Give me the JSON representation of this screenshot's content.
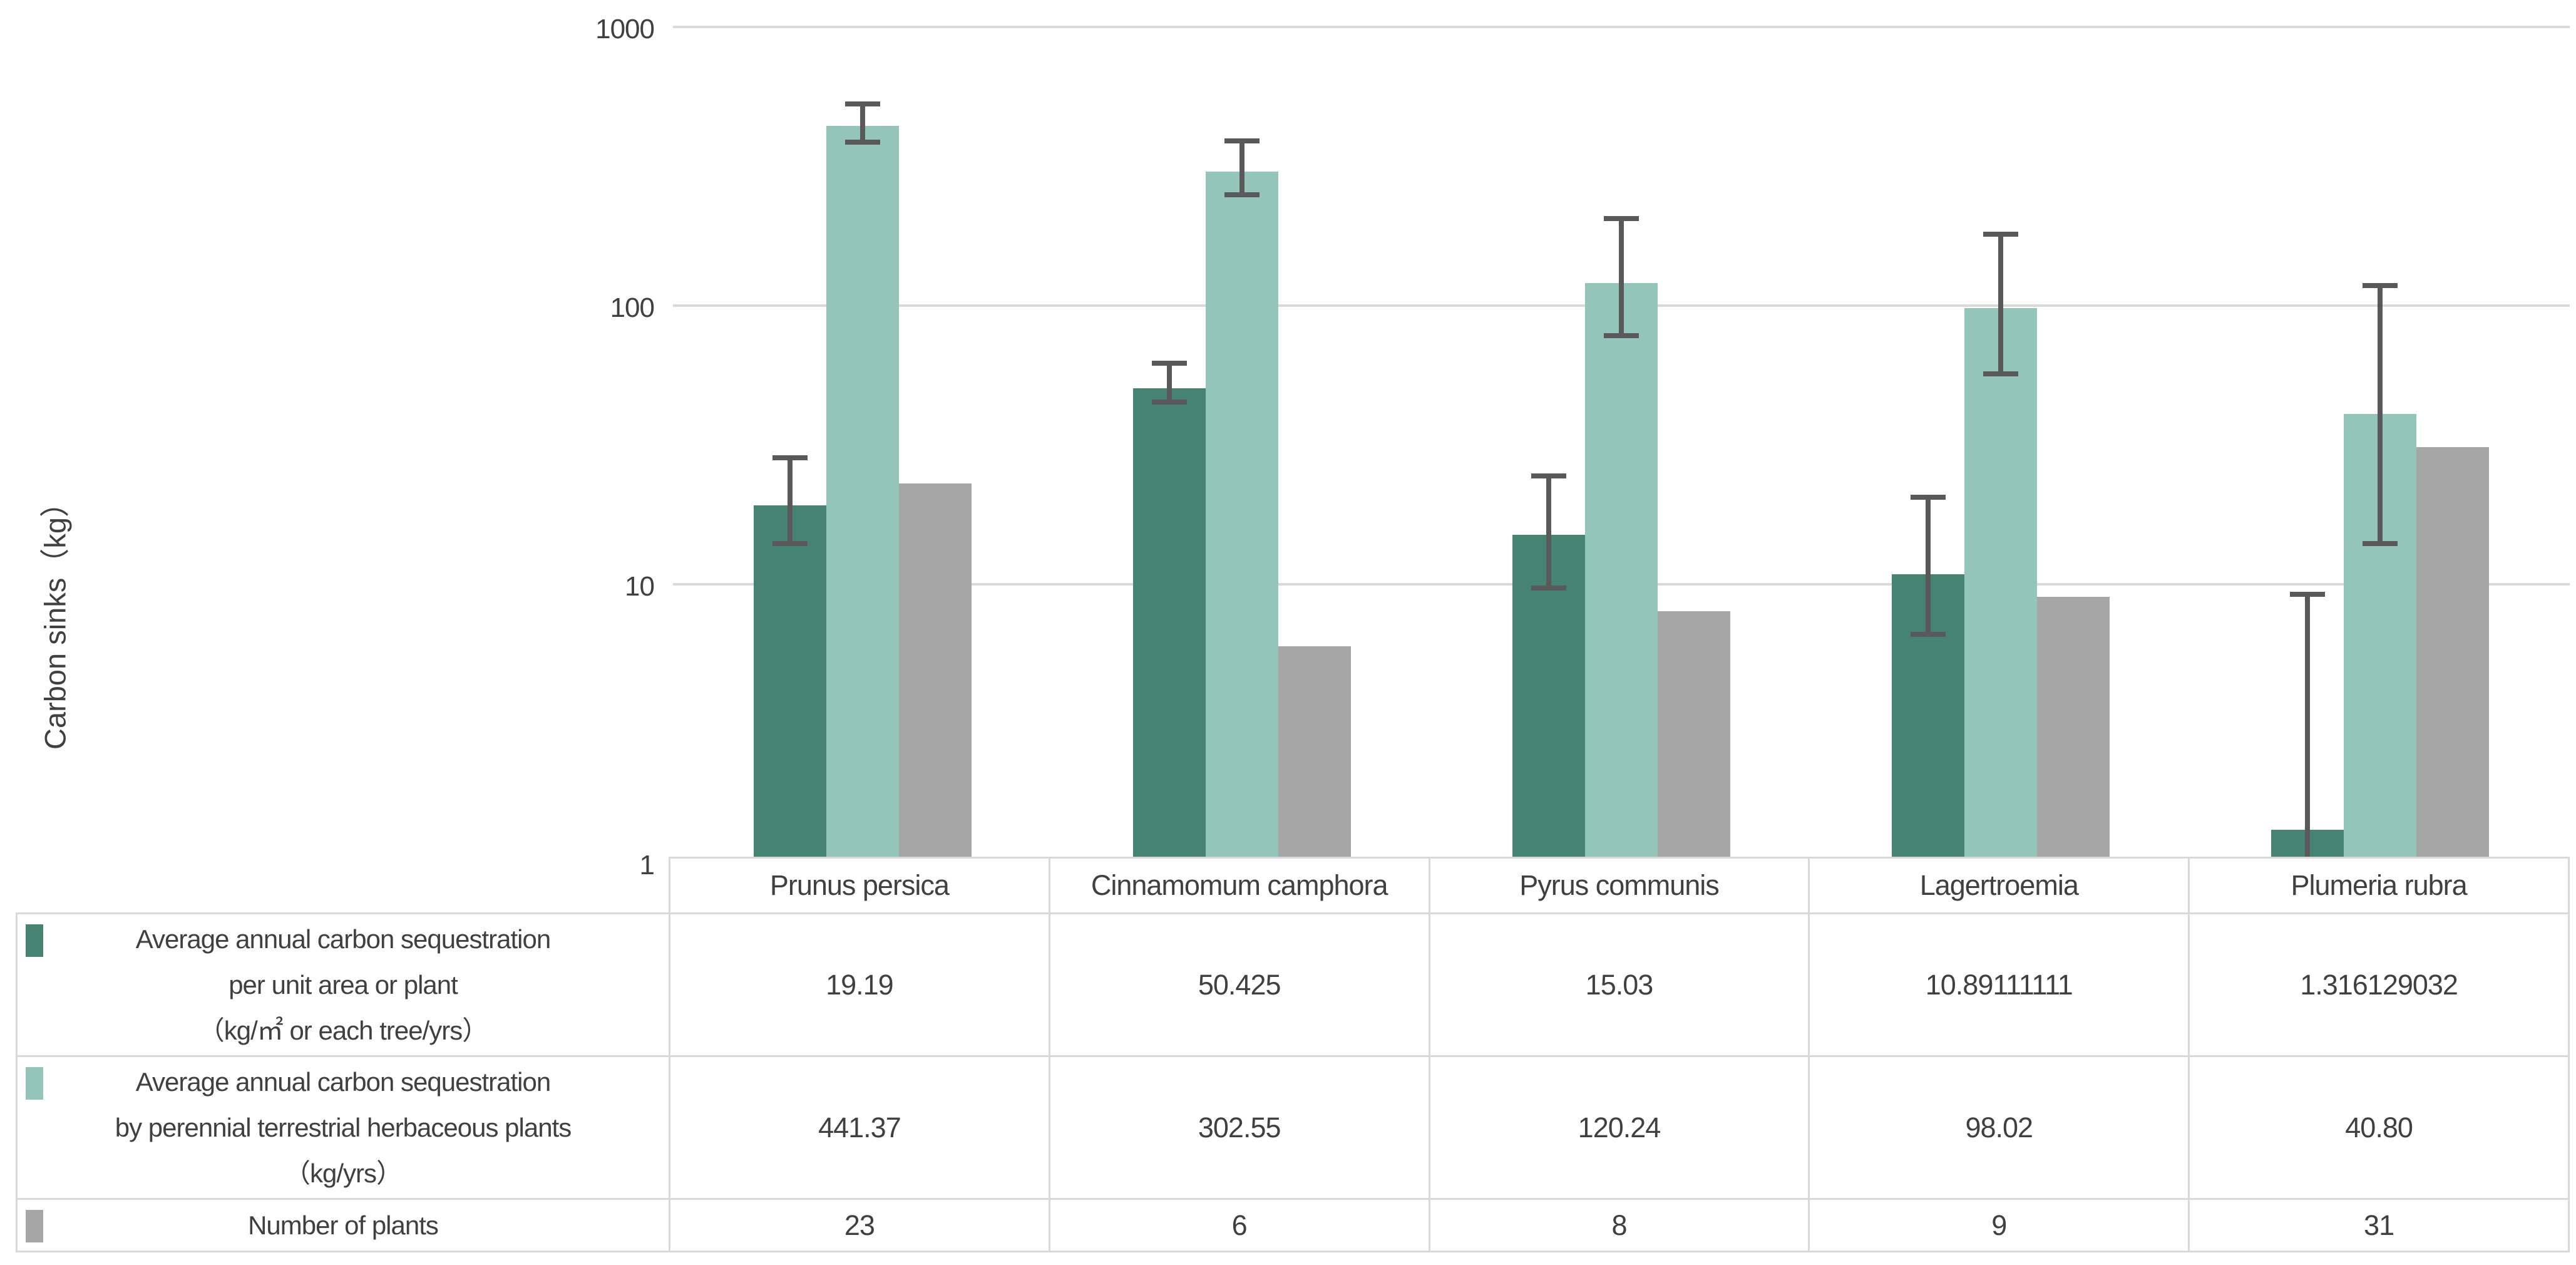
{
  "y_axis": {
    "title": "Carbon sinks（kg）",
    "tick_labels": [
      "1000",
      "100",
      "10",
      "1"
    ]
  },
  "chart_data": {
    "type": "bar",
    "scale": "log10",
    "ylim": [
      1,
      1000
    ],
    "grid": "horizontal gridlines at powers of 10",
    "gridline_values": [
      1000,
      100,
      10
    ],
    "legend_position": "table row headers (left of data table)",
    "ylabel": "Carbon sinks（kg）",
    "categories": [
      "Prunus persica",
      "Cinnamomum camphora",
      "Pyrus communis",
      "Lagertroemia",
      "Plumeria rubra"
    ],
    "series": [
      {
        "name": "Average annual carbon sequestration per unit area or plant（kg/㎡ or each tree/yrs）",
        "label_lines": [
          "Average annual carbon sequestration",
          "per unit area or plant",
          "（kg/㎡ or each tree/yrs）"
        ],
        "color": "#478372",
        "values": [
          19.19,
          50.425,
          15.03,
          10.89111111,
          1.316129032
        ],
        "display_values": [
          "19.19",
          "50.425",
          "15.03",
          "10.89111111",
          "1.316129032"
        ],
        "error_low": [
          14.0,
          45.0,
          9.7,
          6.6,
          1.02
        ],
        "error_high": [
          28.5,
          62.0,
          24.5,
          20.5,
          9.2
        ]
      },
      {
        "name": "Average annual carbon sequestration by perennial terrestrial herbaceous plants（kg/yrs）",
        "label_lines": [
          "Average annual carbon sequestration",
          "by perennial terrestrial herbaceous plants",
          "（kg/yrs）"
        ],
        "color": "#94c5ba",
        "values": [
          441.37,
          302.55,
          120.24,
          98.02,
          40.8
        ],
        "display_values": [
          "441.37",
          "302.55",
          "120.24",
          "98.02",
          "40.80"
        ],
        "error_low": [
          385,
          250,
          78,
          57,
          14
        ],
        "error_high": [
          530,
          390,
          205,
          180,
          118
        ]
      },
      {
        "name": "Number of plants",
        "label_lines": [
          "Number of plants"
        ],
        "color": "#a6a6a6",
        "values": [
          23,
          6,
          8,
          9,
          31
        ],
        "display_values": [
          "23",
          "6",
          "8",
          "9",
          "31"
        ],
        "error_low": null,
        "error_high": null
      }
    ],
    "colors": {
      "error_bar": "#595959",
      "gridline": "#d9d9d9",
      "table_border": "#d9d9d9",
      "text": "#404040"
    }
  }
}
